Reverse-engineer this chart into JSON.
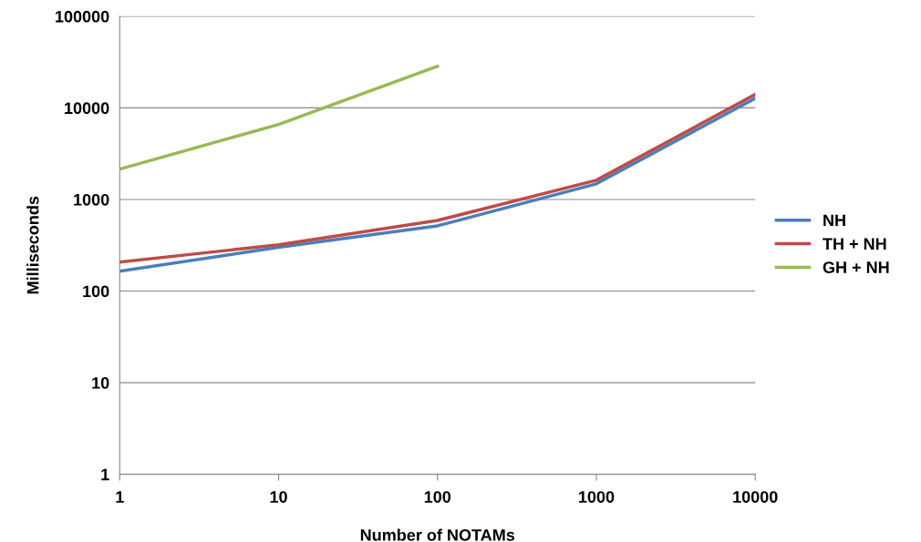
{
  "chart_data": {
    "type": "line",
    "xlabel": "Number of NOTAMs",
    "ylabel": "Milliseconds",
    "x": [
      1,
      10,
      100,
      1000,
      10000
    ],
    "series": [
      {
        "name": "NH",
        "color": "#4a7ebb",
        "values": [
          165,
          300,
          515,
          1480,
          12700
        ]
      },
      {
        "name": "TH + NH",
        "color": "#be4b48",
        "values": [
          207,
          320,
          590,
          1620,
          14000
        ]
      },
      {
        "name": "GH + NH",
        "color": "#98b954",
        "values": [
          2140,
          6600,
          28500,
          null,
          null
        ]
      }
    ],
    "log": "xy",
    "xlim": [
      1,
      10000
    ],
    "ylim": [
      1,
      100000
    ],
    "xticks": [
      1,
      10,
      100,
      1000,
      10000
    ],
    "yticks": [
      1,
      10,
      100,
      1000,
      10000,
      100000
    ],
    "grid": "y",
    "legend": "right",
    "marker": "none",
    "line_style": "solid"
  }
}
